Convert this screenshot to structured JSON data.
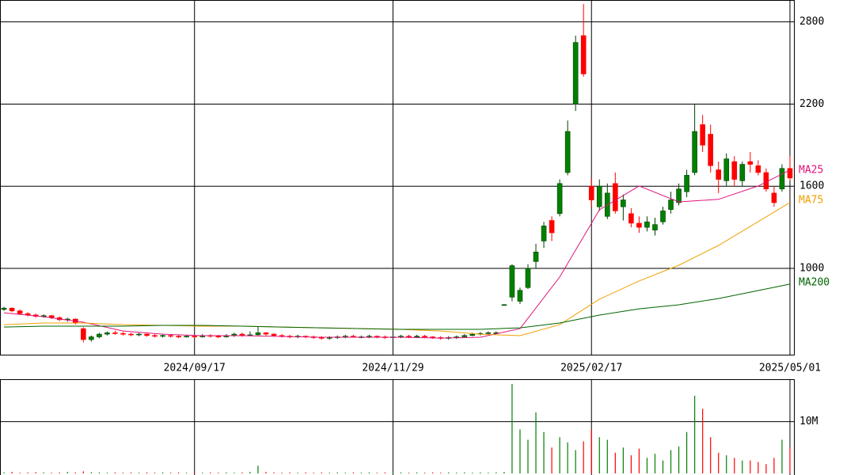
{
  "chart_data": {
    "type": "candlestick",
    "categories": [
      null,
      null,
      null,
      null,
      null,
      null,
      null,
      null,
      null,
      null,
      null,
      null,
      null,
      null,
      null,
      null,
      null,
      null,
      null,
      null,
      null,
      null,
      null,
      null,
      "2024/09/17",
      null,
      null,
      null,
      null,
      null,
      null,
      null,
      null,
      null,
      null,
      null,
      null,
      null,
      null,
      null,
      null,
      null,
      null,
      null,
      null,
      null,
      null,
      null,
      null,
      "2024/11/29",
      null,
      null,
      null,
      null,
      null,
      null,
      null,
      null,
      null,
      null,
      null,
      null,
      null,
      null,
      null,
      null,
      null,
      null,
      null,
      null,
      null,
      null,
      null,
      null,
      "2025/02/17",
      null,
      null,
      null,
      null,
      null,
      null,
      null,
      null,
      null,
      null,
      null,
      null,
      null,
      null,
      null,
      null,
      null,
      null,
      null,
      null,
      null,
      null,
      null,
      null,
      "2025/05/01"
    ],
    "open": [
      700,
      710,
      690,
      670,
      660,
      650,
      655,
      640,
      625,
      630,
      560,
      480,
      500,
      520,
      530,
      525,
      520,
      515,
      520,
      510,
      505,
      510,
      505,
      500,
      505,
      500,
      510,
      505,
      500,
      510,
      520,
      510,
      515,
      530,
      520,
      510,
      505,
      500,
      505,
      500,
      495,
      490,
      495,
      500,
      505,
      500,
      500,
      505,
      500,
      495,
      500,
      505,
      500,
      505,
      500,
      495,
      490,
      495,
      500,
      510,
      520,
      525,
      530,
      735,
      790,
      760,
      860,
      1050,
      1200,
      1350,
      1400,
      1700,
      2200,
      2700,
      1600,
      1450,
      1380,
      1620,
      1450,
      1400,
      1330,
      1300,
      1280,
      1340,
      1430,
      1480,
      1560,
      1700,
      2050,
      1980,
      1720,
      1640,
      1780,
      1640,
      1780,
      1750,
      1700,
      1550,
      1580,
      1730
    ],
    "high": [
      720,
      715,
      700,
      680,
      670,
      665,
      660,
      650,
      640,
      635,
      570,
      510,
      530,
      540,
      545,
      535,
      530,
      530,
      525,
      520,
      520,
      515,
      515,
      515,
      510,
      520,
      520,
      515,
      520,
      530,
      530,
      540,
      575,
      535,
      525,
      520,
      515,
      515,
      510,
      510,
      505,
      505,
      510,
      515,
      515,
      510,
      515,
      510,
      510,
      510,
      515,
      515,
      515,
      515,
      505,
      505,
      505,
      510,
      520,
      530,
      535,
      540,
      540,
      740,
      1030,
      860,
      1030,
      1180,
      1340,
      1380,
      1650,
      2080,
      2700,
      2930,
      1660,
      1650,
      1620,
      1700,
      1540,
      1440,
      1380,
      1380,
      1370,
      1450,
      1560,
      1620,
      1720,
      2200,
      2120,
      2050,
      1780,
      1840,
      1820,
      1780,
      1850,
      1790,
      1730,
      1600,
      1760,
      1820
    ],
    "low": [
      690,
      680,
      660,
      650,
      640,
      640,
      630,
      615,
      610,
      590,
      460,
      465,
      490,
      510,
      515,
      510,
      505,
      505,
      500,
      495,
      495,
      495,
      490,
      495,
      490,
      495,
      495,
      490,
      495,
      500,
      500,
      505,
      510,
      510,
      500,
      495,
      490,
      490,
      490,
      485,
      480,
      480,
      485,
      490,
      495,
      490,
      490,
      490,
      485,
      485,
      490,
      490,
      495,
      490,
      485,
      480,
      480,
      485,
      495,
      505,
      510,
      515,
      520,
      730,
      760,
      740,
      850,
      1000,
      1150,
      1200,
      1380,
      1680,
      2150,
      2400,
      1450,
      1420,
      1360,
      1400,
      1350,
      1300,
      1260,
      1270,
      1240,
      1320,
      1400,
      1460,
      1520,
      1680,
      1850,
      1700,
      1550,
      1600,
      1600,
      1600,
      1700,
      1680,
      1560,
      1450,
      1560,
      1640
    ],
    "close": [
      710,
      690,
      670,
      660,
      650,
      655,
      640,
      625,
      630,
      600,
      480,
      500,
      520,
      530,
      525,
      520,
      515,
      520,
      510,
      505,
      510,
      505,
      500,
      505,
      500,
      510,
      505,
      500,
      510,
      520,
      510,
      515,
      530,
      520,
      510,
      505,
      500,
      505,
      500,
      495,
      490,
      495,
      500,
      505,
      500,
      500,
      505,
      500,
      495,
      500,
      505,
      500,
      505,
      500,
      495,
      490,
      495,
      500,
      510,
      520,
      525,
      530,
      530,
      735,
      1020,
      840,
      1000,
      1120,
      1310,
      1260,
      1620,
      2000,
      2650,
      2420,
      1500,
      1600,
      1550,
      1420,
      1500,
      1330,
      1300,
      1340,
      1320,
      1420,
      1500,
      1580,
      1680,
      2000,
      1900,
      1750,
      1650,
      1800,
      1650,
      1760,
      1760,
      1700,
      1580,
      1480,
      1730,
      1660
    ],
    "up_color": "#008000",
    "down_color": "#ff0000",
    "ylim": [
      370,
      2960
    ],
    "yticks": [
      1000,
      1600,
      2200,
      2800
    ],
    "grid": true,
    "series": [
      {
        "name": "MA25",
        "color": "#e0147c",
        "x": [
          0,
          5,
          10,
          15,
          20,
          25,
          30,
          35,
          40,
          45,
          50,
          55,
          60,
          65,
          70,
          75,
          80,
          85,
          90,
          95,
          99
        ],
        "values": [
          676,
          647,
          607,
          543,
          520,
          509,
          509,
          503,
          497,
          497,
          497,
          491,
          497,
          560,
          937,
          1428,
          1602,
          1486,
          1504,
          1602,
          1718
        ]
      },
      {
        "name": "MA75",
        "color": "#f0a000",
        "x": [
          0,
          5,
          10,
          15,
          20,
          25,
          30,
          35,
          40,
          45,
          50,
          55,
          60,
          65,
          70,
          75,
          80,
          85,
          90,
          95,
          99
        ],
        "values": [
          589,
          601,
          601,
          589,
          584,
          578,
          578,
          572,
          566,
          560,
          555,
          543,
          520,
          509,
          589,
          775,
          908,
          1023,
          1168,
          1342,
          1481
        ]
      },
      {
        "name": "MA200",
        "color": "#006400",
        "x": [
          0,
          5,
          10,
          15,
          20,
          25,
          30,
          35,
          40,
          45,
          50,
          55,
          60,
          65,
          70,
          75,
          80,
          85,
          90,
          95,
          99
        ],
        "values": [
          572,
          578,
          578,
          578,
          584,
          584,
          578,
          572,
          566,
          560,
          555,
          555,
          555,
          566,
          601,
          659,
          705,
          734,
          780,
          838,
          885
        ]
      }
    ],
    "volume": {
      "ylim": [
        0,
        18200000
      ],
      "yticks": [
        {
          "value": 10000000,
          "label": "10M"
        }
      ],
      "values": [
        200000,
        300000,
        150000,
        200000,
        250000,
        200000,
        150000,
        200000,
        300000,
        200000,
        400000,
        250000,
        200000,
        150000,
        200000,
        150000,
        200000,
        150000,
        200000,
        150000,
        200000,
        150000,
        200000,
        150000,
        200000,
        150000,
        200000,
        150000,
        200000,
        150000,
        200000,
        300000,
        1500000,
        300000,
        200000,
        150000,
        200000,
        150000,
        200000,
        150000,
        200000,
        150000,
        200000,
        150000,
        200000,
        150000,
        200000,
        150000,
        200000,
        150000,
        200000,
        150000,
        200000,
        150000,
        200000,
        150000,
        200000,
        150000,
        200000,
        150000,
        200000,
        150000,
        200000,
        300000,
        17300000,
        8500000,
        6500000,
        11800000,
        8000000,
        5000000,
        7000000,
        6000000,
        4500000,
        6200000,
        8500000,
        7000000,
        6500000,
        4000000,
        5000000,
        3500000,
        4800000,
        3000000,
        3800000,
        2500000,
        4500000,
        5200000,
        8000000,
        15000000,
        12500000,
        7000000,
        4000000,
        3500000,
        3000000,
        2500000,
        2500000,
        2200000,
        1800000,
        3000000,
        6500000,
        5000000
      ]
    }
  }
}
